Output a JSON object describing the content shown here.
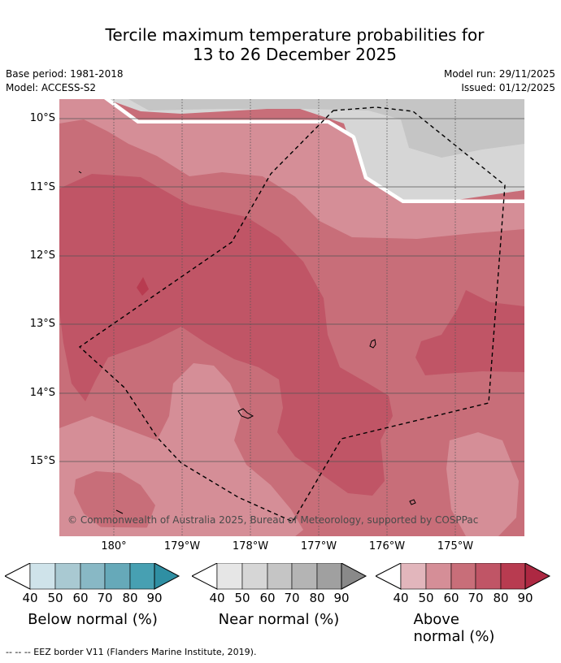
{
  "title": {
    "line1": "Tercile maximum temperature probabilities for",
    "line2": "13 to 26 December 2025"
  },
  "meta": {
    "base_period": "Base period: 1981-2018",
    "model": "Model: ACCESS-S2",
    "model_run": "Model run: 29/11/2025",
    "issued": "Issued: 01/12/2025"
  },
  "map": {
    "lat_labels": [
      "10°S",
      "11°S",
      "12°S",
      "13°S",
      "14°S",
      "15°S"
    ],
    "lon_labels": [
      "180°",
      "179°W",
      "178°W",
      "177°W",
      "176°W",
      "175°W"
    ],
    "copyright": "© Commonwealth of Australia 2025, Bureau of Meteorology, supported by COSPPac"
  },
  "legends": [
    {
      "title": "Below normal (%)",
      "ticks": [
        "40",
        "50",
        "60",
        "70",
        "80",
        "90"
      ],
      "colors": [
        "#cfe3ea",
        "#a9c9d2",
        "#88b8c5",
        "#66a9b9",
        "#47a0b2",
        "#2f8fa3"
      ]
    },
    {
      "title": "Near normal (%)",
      "ticks": [
        "40",
        "50",
        "60",
        "70",
        "80",
        "90"
      ],
      "colors": [
        "#e6e6e6",
        "#d6d6d6",
        "#c5c5c5",
        "#b4b4b4",
        "#a0a0a0",
        "#898989"
      ]
    },
    {
      "title": "Above normal (%)",
      "ticks": [
        "40",
        "50",
        "60",
        "70",
        "80",
        "90"
      ],
      "colors": [
        "#e2b6bc",
        "#d58e97",
        "#c86e79",
        "#c05566",
        "#b83b50",
        "#ad2842"
      ]
    }
  ],
  "footer": "--  --  -- EEZ border V11 (Flanders Marine Institute, 2019)."
}
